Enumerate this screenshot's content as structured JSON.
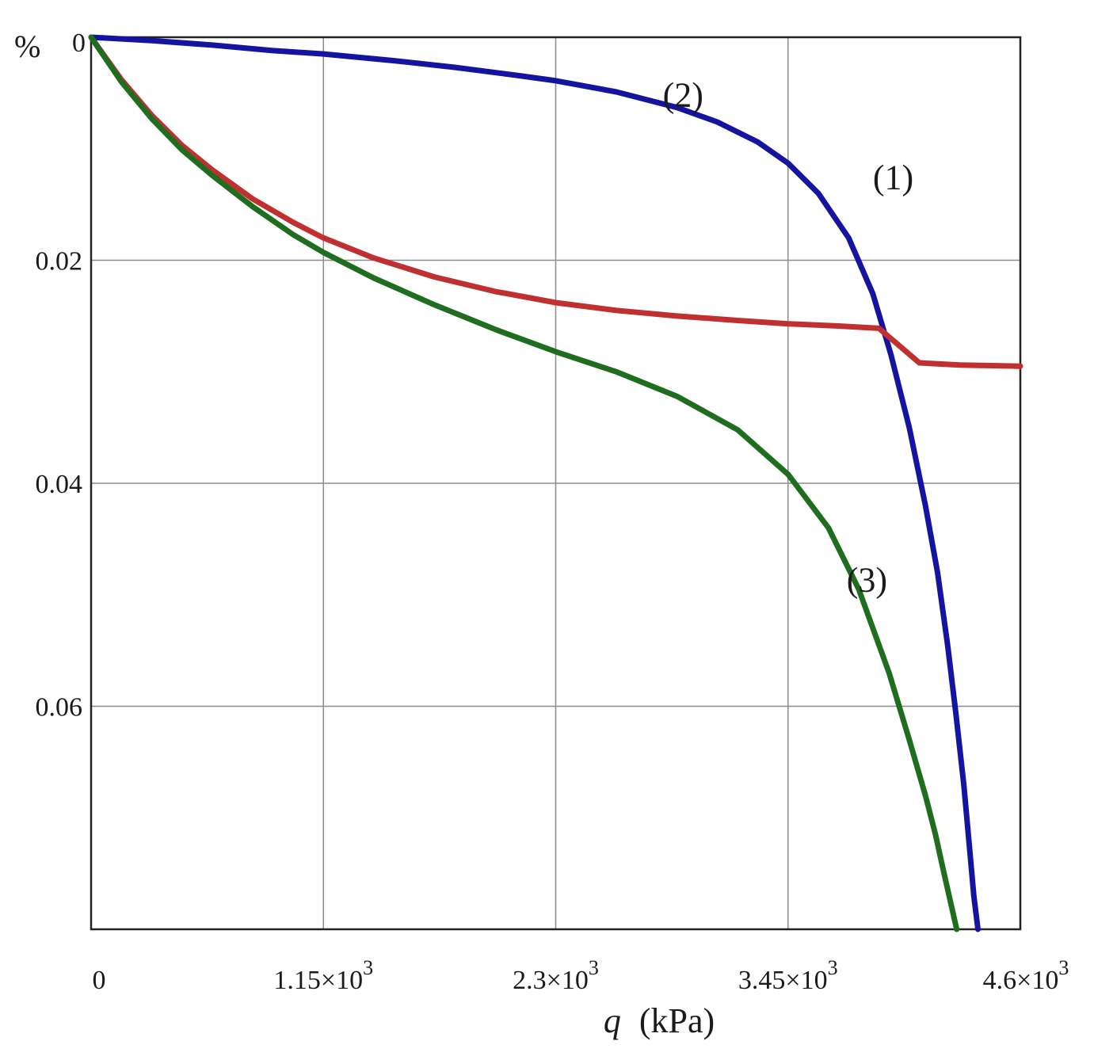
{
  "chart_data": {
    "type": "line",
    "title": "",
    "xlabel": "q",
    "xlabel_unit": "(kPa)",
    "ylabel": "%",
    "xlim": [
      0,
      4600
    ],
    "ylim": [
      0,
      0.08
    ],
    "y_inverted": true,
    "grid": true,
    "x_ticks": [
      {
        "value": 0,
        "mantissa": "0",
        "exponent": ""
      },
      {
        "value": 1150,
        "mantissa": "1.15×10",
        "exponent": "3"
      },
      {
        "value": 2300,
        "mantissa": "2.3×10",
        "exponent": "3"
      },
      {
        "value": 3450,
        "mantissa": "3.45×10",
        "exponent": "3"
      },
      {
        "value": 4600,
        "mantissa": "4.6×10",
        "exponent": "3"
      }
    ],
    "y_ticks": [
      {
        "value": 0,
        "label": "0"
      },
      {
        "value": 0.02,
        "label": "0.02"
      },
      {
        "value": 0.04,
        "label": "0.04"
      },
      {
        "value": 0.06,
        "label": "0.06"
      }
    ],
    "series": [
      {
        "label": "(1)",
        "label_at": [
          3870,
          0.0136
        ],
        "color": "#1414a0",
        "x": [
          0,
          300,
          600,
          900,
          1150,
          1500,
          1800,
          2100,
          2300,
          2600,
          2900,
          3100,
          3300,
          3450,
          3600,
          3750,
          3870,
          3960,
          4050,
          4130,
          4190,
          4240,
          4280,
          4320,
          4345,
          4370,
          4390
        ],
        "y": [
          0,
          0.0003,
          0.0007,
          0.0012,
          0.0015,
          0.0021,
          0.0027,
          0.0034,
          0.0039,
          0.0049,
          0.0063,
          0.0076,
          0.0094,
          0.0113,
          0.014,
          0.018,
          0.023,
          0.0285,
          0.035,
          0.042,
          0.048,
          0.0545,
          0.0605,
          0.067,
          0.072,
          0.077,
          0.08
        ]
      },
      {
        "label": "(2)",
        "label_at": [
          2830,
          0.0062
        ],
        "color": "#c03030",
        "x": [
          0,
          150,
          300,
          450,
          600,
          800,
          1000,
          1150,
          1400,
          1700,
          2000,
          2300,
          2600,
          2900,
          3200,
          3450,
          3700,
          3900,
          4100,
          4300,
          4600
        ],
        "y": [
          0,
          0.0038,
          0.007,
          0.0097,
          0.0119,
          0.0145,
          0.0166,
          0.018,
          0.0198,
          0.0215,
          0.0228,
          0.0238,
          0.0245,
          0.025,
          0.0254,
          0.0257,
          0.0259,
          0.0261,
          0.0292,
          0.0294,
          0.0295
        ]
      },
      {
        "label": "(3)",
        "label_at": [
          3740,
          0.0497
        ],
        "color": "#1f6e1f",
        "x": [
          0,
          150,
          300,
          450,
          600,
          800,
          1000,
          1150,
          1400,
          1700,
          2000,
          2300,
          2600,
          2900,
          3200,
          3450,
          3650,
          3800,
          3950,
          4050,
          4130,
          4180,
          4220,
          4260,
          4285
        ],
        "y": [
          0,
          0.004,
          0.0073,
          0.0101,
          0.0124,
          0.0152,
          0.0177,
          0.0193,
          0.0216,
          0.024,
          0.0262,
          0.0282,
          0.03,
          0.0322,
          0.0352,
          0.0392,
          0.044,
          0.0495,
          0.057,
          0.063,
          0.068,
          0.0715,
          0.0748,
          0.078,
          0.08
        ]
      }
    ]
  }
}
